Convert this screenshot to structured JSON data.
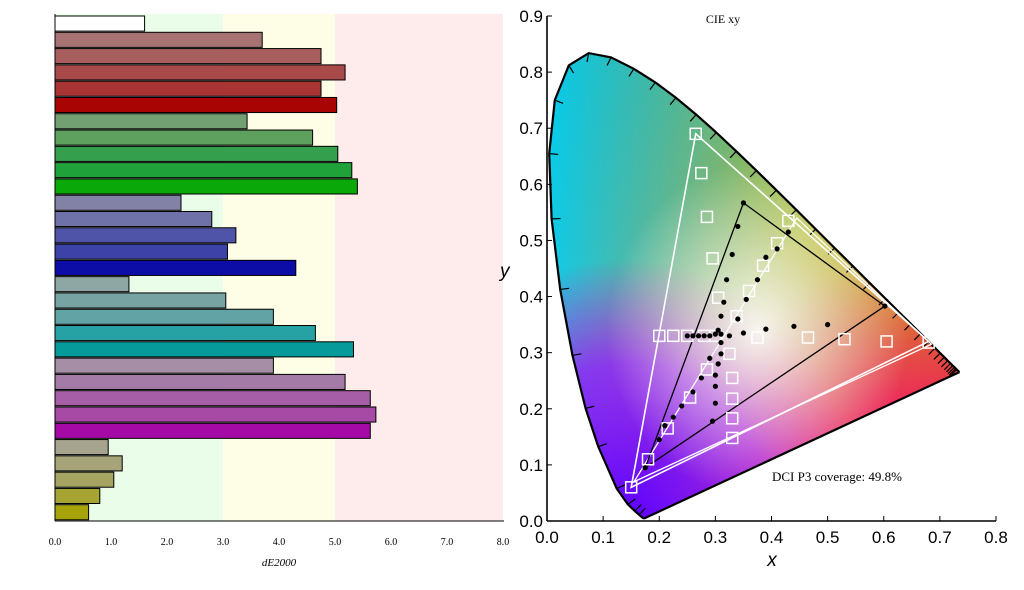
{
  "chart_data": [
    {
      "type": "bar",
      "orientation": "horizontal",
      "xlabel": "dE2000",
      "xlim": [
        0,
        8
      ],
      "x_ticks": [
        "0.0",
        "1.0",
        "2.0",
        "3.0",
        "4.0",
        "5.0",
        "6.0",
        "7.0",
        "8.0"
      ],
      "zones": [
        {
          "from": 0,
          "to": 3,
          "color": "#e9fde9"
        },
        {
          "from": 3,
          "to": 5,
          "color": "#fefde6"
        },
        {
          "from": 5,
          "to": 8,
          "color": "#feebeb"
        }
      ],
      "bars": [
        {
          "value": 1.6,
          "color": "#ffffff"
        },
        {
          "value": 3.7,
          "color": "#a67272"
        },
        {
          "value": 4.75,
          "color": "#a85e5e"
        },
        {
          "value": 5.18,
          "color": "#a84a4a"
        },
        {
          "value": 4.75,
          "color": "#a83434"
        },
        {
          "value": 5.03,
          "color": "#a80404"
        },
        {
          "value": 3.43,
          "color": "#72a072"
        },
        {
          "value": 4.6,
          "color": "#5ea05e"
        },
        {
          "value": 5.05,
          "color": "#34a04e"
        },
        {
          "value": 5.3,
          "color": "#1fa23a"
        },
        {
          "value": 5.4,
          "color": "#0aa808"
        },
        {
          "value": 2.25,
          "color": "#8282a6"
        },
        {
          "value": 2.8,
          "color": "#6e72a8"
        },
        {
          "value": 3.23,
          "color": "#5054a8"
        },
        {
          "value": 3.08,
          "color": "#3c42a8"
        },
        {
          "value": 4.3,
          "color": "#0c0ca6"
        },
        {
          "value": 1.32,
          "color": "#8ea6a4"
        },
        {
          "value": 3.05,
          "color": "#78a3a3"
        },
        {
          "value": 3.9,
          "color": "#62a3a5"
        },
        {
          "value": 4.65,
          "color": "#26a2a5"
        },
        {
          "value": 5.33,
          "color": "#069a9a"
        },
        {
          "value": 3.9,
          "color": "#a68ea6"
        },
        {
          "value": 5.18,
          "color": "#a47aa6"
        },
        {
          "value": 5.63,
          "color": "#a65ea6"
        },
        {
          "value": 5.73,
          "color": "#a64aa6"
        },
        {
          "value": 5.63,
          "color": "#a60aa6"
        },
        {
          "value": 0.95,
          "color": "#a6a48e"
        },
        {
          "value": 1.2,
          "color": "#a6a478"
        },
        {
          "value": 1.05,
          "color": "#a6a462"
        },
        {
          "value": 0.8,
          "color": "#a6a432"
        },
        {
          "value": 0.6,
          "color": "#a6a40a"
        }
      ]
    },
    {
      "type": "scatter",
      "title": "CIE xy",
      "xlabel": "x",
      "ylabel": "y",
      "xlim": [
        0,
        0.8
      ],
      "ylim": [
        0,
        0.9
      ],
      "x_ticks": [
        "0.0",
        "0.1",
        "0.2",
        "0.3",
        "0.4",
        "0.5",
        "0.6",
        "0.7",
        "0.8"
      ],
      "y_ticks": [
        "0.0",
        "0.1",
        "0.2",
        "0.3",
        "0.4",
        "0.5",
        "0.6",
        "0.7",
        "0.8",
        "0.9"
      ],
      "annotation": "DCI P3 coverage: 49.8%",
      "spectral_locus": [
        [
          0.1741,
          0.005
        ],
        [
          0.173,
          0.0048
        ],
        [
          0.1714,
          0.0051
        ],
        [
          0.1689,
          0.0069
        ],
        [
          0.1644,
          0.0109
        ],
        [
          0.1566,
          0.0177
        ],
        [
          0.144,
          0.0297
        ],
        [
          0.1241,
          0.0578
        ],
        [
          0.0913,
          0.1327
        ],
        [
          0.0687,
          0.2007
        ],
        [
          0.0454,
          0.295
        ],
        [
          0.0235,
          0.4127
        ],
        [
          0.0082,
          0.5384
        ],
        [
          0.0039,
          0.6548
        ],
        [
          0.0139,
          0.7502
        ],
        [
          0.0389,
          0.812
        ],
        [
          0.0743,
          0.8338
        ],
        [
          0.1142,
          0.8262
        ],
        [
          0.1547,
          0.8059
        ],
        [
          0.1929,
          0.7816
        ],
        [
          0.2296,
          0.7543
        ],
        [
          0.2658,
          0.7243
        ],
        [
          0.3016,
          0.6923
        ],
        [
          0.3373,
          0.6589
        ],
        [
          0.3731,
          0.6245
        ],
        [
          0.4087,
          0.5896
        ],
        [
          0.4441,
          0.5547
        ],
        [
          0.4788,
          0.5202
        ],
        [
          0.5125,
          0.4866
        ],
        [
          0.5448,
          0.4544
        ],
        [
          0.5752,
          0.4242
        ],
        [
          0.6029,
          0.3965
        ],
        [
          0.627,
          0.3725
        ],
        [
          0.6482,
          0.3514
        ],
        [
          0.6658,
          0.334
        ],
        [
          0.6801,
          0.3197
        ],
        [
          0.6915,
          0.3083
        ],
        [
          0.7006,
          0.2993
        ],
        [
          0.7079,
          0.292
        ],
        [
          0.714,
          0.2859
        ],
        [
          0.719,
          0.2809
        ],
        [
          0.723,
          0.277
        ],
        [
          0.726,
          0.274
        ],
        [
          0.7283,
          0.2717
        ],
        [
          0.73,
          0.27
        ],
        [
          0.7311,
          0.2689
        ],
        [
          0.732,
          0.268
        ],
        [
          0.7327,
          0.2673
        ],
        [
          0.7334,
          0.2666
        ],
        [
          0.734,
          0.266
        ],
        [
          0.7344,
          0.2656
        ],
        [
          0.7346,
          0.2654
        ],
        [
          0.7347,
          0.2653
        ]
      ],
      "reference_gamut_white": [
        [
          0.68,
          0.32
        ],
        [
          0.265,
          0.69
        ],
        [
          0.15,
          0.06
        ]
      ],
      "reference_gamut_outer": [
        [
          0.445,
          0.54
        ],
        [
          0.155,
          0.07
        ],
        [
          0.685,
          0.315
        ]
      ],
      "measured_gamut": [
        [
          0.602,
          0.383
        ],
        [
          0.35,
          0.567
        ],
        [
          0.175,
          0.095
        ]
      ],
      "target_squares": [
        [
          0.265,
          0.69
        ],
        [
          0.275,
          0.62
        ],
        [
          0.285,
          0.542
        ],
        [
          0.295,
          0.468
        ],
        [
          0.305,
          0.398
        ],
        [
          0.43,
          0.535
        ],
        [
          0.41,
          0.495
        ],
        [
          0.385,
          0.455
        ],
        [
          0.36,
          0.41
        ],
        [
          0.338,
          0.365
        ],
        [
          0.2,
          0.33
        ],
        [
          0.225,
          0.33
        ],
        [
          0.25,
          0.33
        ],
        [
          0.28,
          0.33
        ],
        [
          0.3,
          0.33
        ],
        [
          0.375,
          0.327
        ],
        [
          0.465,
          0.327
        ],
        [
          0.53,
          0.324
        ],
        [
          0.605,
          0.32
        ],
        [
          0.68,
          0.318
        ],
        [
          0.325,
          0.298
        ],
        [
          0.33,
          0.255
        ],
        [
          0.33,
          0.218
        ],
        [
          0.33,
          0.183
        ],
        [
          0.33,
          0.148
        ],
        [
          0.285,
          0.27
        ],
        [
          0.255,
          0.22
        ],
        [
          0.215,
          0.165
        ],
        [
          0.18,
          0.11
        ],
        [
          0.15,
          0.06
        ]
      ],
      "measured_points": [
        [
          0.35,
          0.567
        ],
        [
          0.34,
          0.525
        ],
        [
          0.33,
          0.475
        ],
        [
          0.32,
          0.43
        ],
        [
          0.315,
          0.39
        ],
        [
          0.31,
          0.365
        ],
        [
          0.305,
          0.34
        ],
        [
          0.43,
          0.515
        ],
        [
          0.41,
          0.485
        ],
        [
          0.39,
          0.47
        ],
        [
          0.375,
          0.43
        ],
        [
          0.355,
          0.395
        ],
        [
          0.34,
          0.36
        ],
        [
          0.602,
          0.383
        ],
        [
          0.5,
          0.35
        ],
        [
          0.44,
          0.347
        ],
        [
          0.39,
          0.342
        ],
        [
          0.35,
          0.335
        ],
        [
          0.325,
          0.33
        ],
        [
          0.31,
          0.333
        ],
        [
          0.3,
          0.333
        ],
        [
          0.29,
          0.33
        ],
        [
          0.28,
          0.33
        ],
        [
          0.27,
          0.33
        ],
        [
          0.26,
          0.33
        ],
        [
          0.25,
          0.33
        ],
        [
          0.31,
          0.318
        ],
        [
          0.31,
          0.298
        ],
        [
          0.305,
          0.28
        ],
        [
          0.3,
          0.26
        ],
        [
          0.3,
          0.24
        ],
        [
          0.3,
          0.21
        ],
        [
          0.295,
          0.178
        ],
        [
          0.29,
          0.29
        ],
        [
          0.275,
          0.255
        ],
        [
          0.26,
          0.23
        ],
        [
          0.24,
          0.205
        ],
        [
          0.225,
          0.185
        ],
        [
          0.21,
          0.17
        ],
        [
          0.2,
          0.145
        ],
        [
          0.175,
          0.095
        ]
      ]
    }
  ]
}
